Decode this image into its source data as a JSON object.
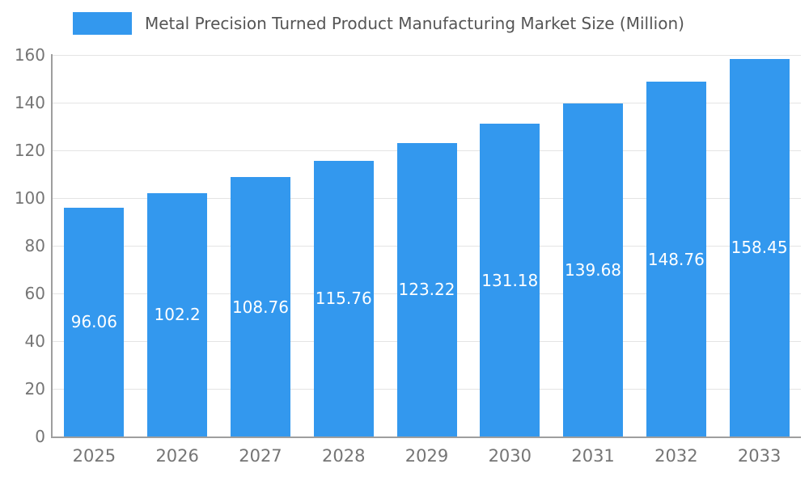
{
  "chart": {
    "legend_label": "Metal Precision Turned Product Manufacturing Market Size (Million)",
    "colors": {
      "bar": "#3398ee",
      "grid": "#e4e4e4",
      "axis": "#9e9e9e",
      "tick_text": "#757575",
      "title_text": "#555555",
      "value_label": "#ffffff",
      "background": "#ffffff"
    }
  },
  "chart_data": {
    "type": "bar",
    "title": "Metal Precision Turned Product Manufacturing Market Size (Million)",
    "xlabel": "",
    "ylabel": "",
    "categories": [
      "2025",
      "2026",
      "2027",
      "2028",
      "2029",
      "2030",
      "2031",
      "2032",
      "2033"
    ],
    "values": [
      96.06,
      102.2,
      108.76,
      115.76,
      123.22,
      131.18,
      139.68,
      148.76,
      158.45
    ],
    "value_labels": [
      "96.06",
      "102.2",
      "108.76",
      "115.76",
      "123.22",
      "131.18",
      "139.68",
      "148.76",
      "158.45"
    ],
    "ylim": [
      0,
      160
    ],
    "y_ticks": [
      0,
      20,
      40,
      60,
      80,
      100,
      120,
      140,
      160
    ],
    "grid": true,
    "legend_position": "top-left",
    "value_label_position": "center-inside-bar"
  }
}
